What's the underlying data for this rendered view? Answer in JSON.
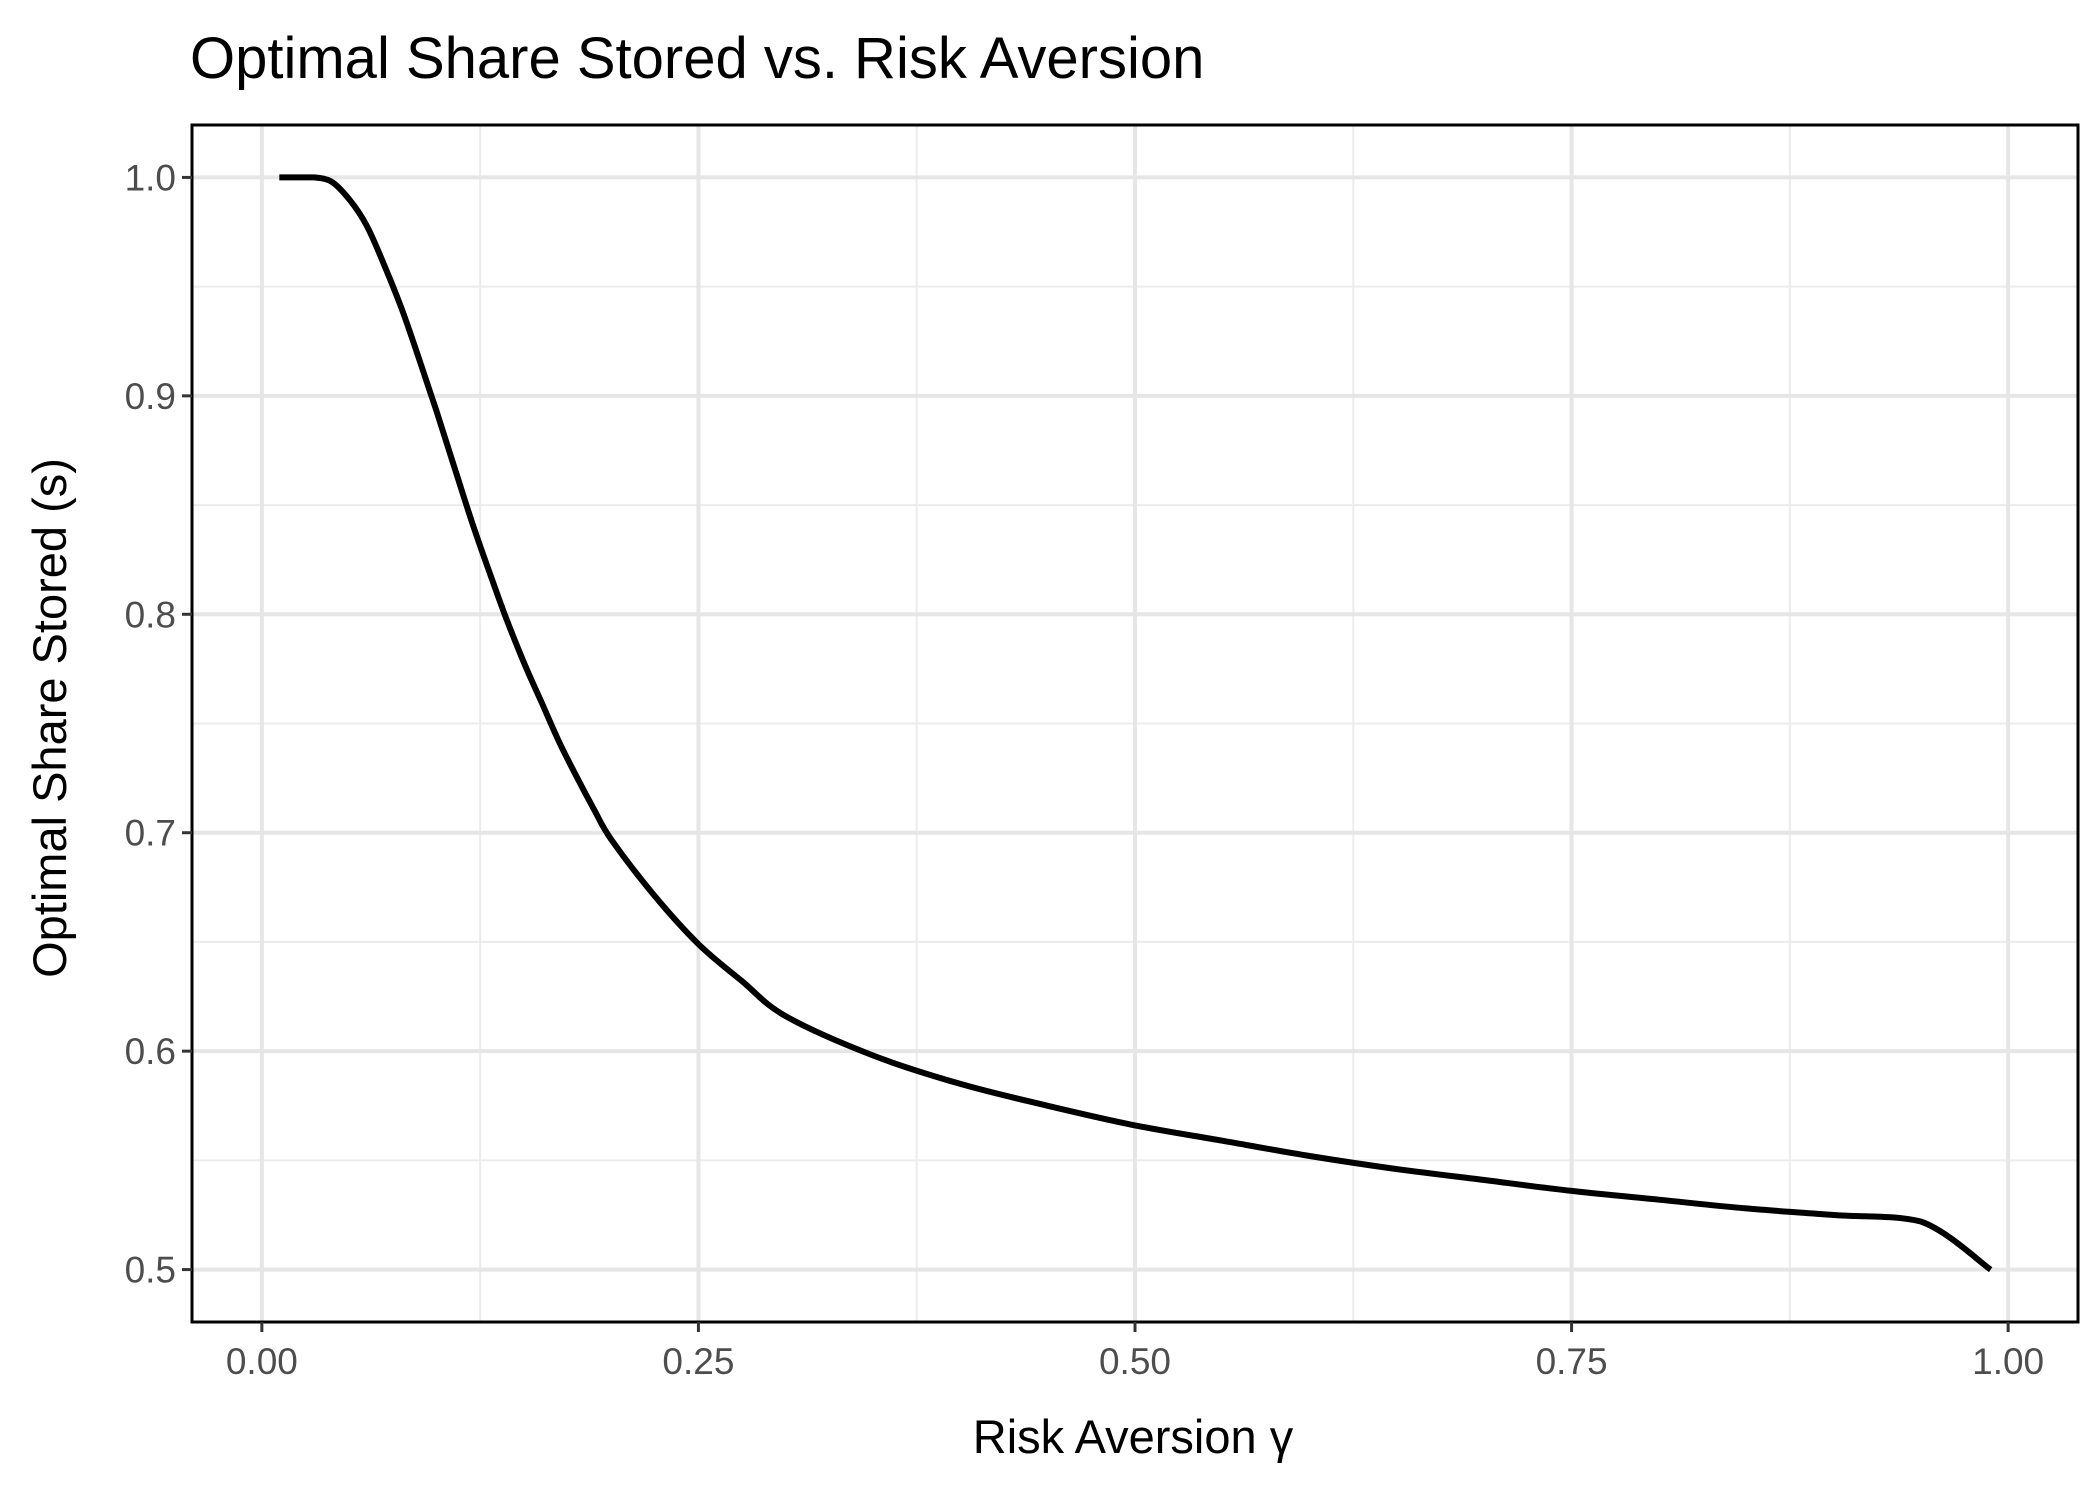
{
  "chart_data": {
    "type": "line",
    "title": "Optimal Share Stored vs. Risk Aversion",
    "xlabel": "Risk Aversion γ",
    "ylabel": "Optimal Share Stored (s)",
    "xlim": [
      -0.04,
      1.04
    ],
    "ylim": [
      0.476,
      1.024
    ],
    "x_ticks": [
      0.0,
      0.25,
      0.5,
      0.75,
      1.0
    ],
    "x_tick_labels": [
      "0.00",
      "0.25",
      "0.50",
      "0.75",
      "1.00"
    ],
    "y_ticks": [
      0.5,
      0.6,
      0.7,
      0.8,
      0.9,
      1.0
    ],
    "y_tick_labels": [
      "0.5",
      "0.6",
      "0.7",
      "0.8",
      "0.9",
      "1.0"
    ],
    "x_minor_ticks": [
      0.125,
      0.375,
      0.625,
      0.875
    ],
    "y_minor_ticks": [
      0.55,
      0.65,
      0.75,
      0.85,
      0.95
    ],
    "grid": true,
    "legend": "none",
    "colors": {
      "line": "#000000",
      "panel_border": "#000000",
      "grid": "#e6e6e6"
    },
    "series": [
      {
        "x": [
          0.01,
          0.02,
          0.03,
          0.04,
          0.05,
          0.06,
          0.07,
          0.08,
          0.09,
          0.1,
          0.11,
          0.12,
          0.13,
          0.14,
          0.15,
          0.16,
          0.17,
          0.18,
          0.19,
          0.2,
          0.225,
          0.25,
          0.275,
          0.3,
          0.35,
          0.4,
          0.45,
          0.5,
          0.55,
          0.6,
          0.65,
          0.7,
          0.75,
          0.8,
          0.85,
          0.9,
          0.95,
          0.99
        ],
        "y": [
          1.0,
          1.0,
          1.0,
          0.998,
          0.99,
          0.978,
          0.96,
          0.94,
          0.917,
          0.893,
          0.868,
          0.843,
          0.82,
          0.798,
          0.778,
          0.76,
          0.742,
          0.726,
          0.711,
          0.697,
          0.671,
          0.649,
          0.632,
          0.616,
          0.598,
          0.585,
          0.575,
          0.566,
          0.559,
          0.552,
          0.546,
          0.541,
          0.536,
          0.532,
          0.528,
          0.525,
          0.522,
          0.5
        ]
      }
    ]
  }
}
